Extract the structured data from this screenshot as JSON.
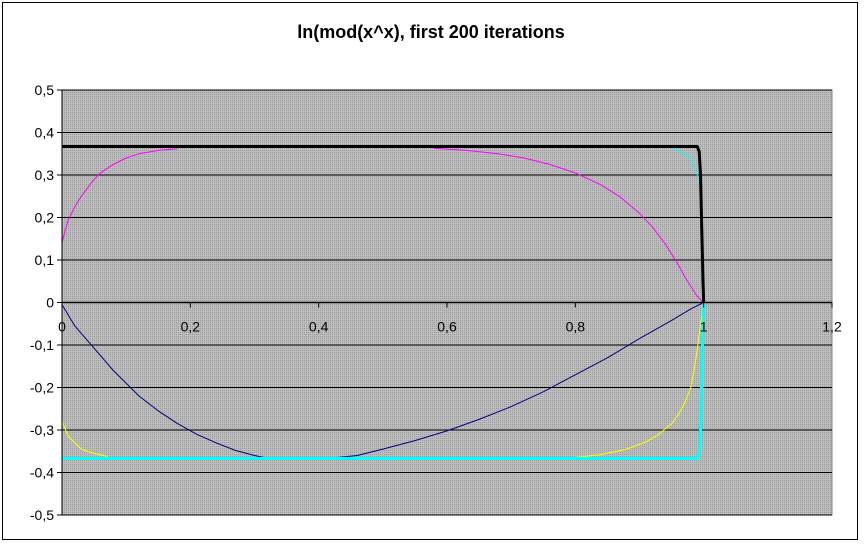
{
  "chart_data": {
    "type": "scatter",
    "title": "ln(mod(x^x), first 200 iterations",
    "xlabel": "",
    "ylabel": "",
    "xlim": [
      0,
      1.2
    ],
    "ylim": [
      -0.5,
      0.5
    ],
    "x_ticks": [
      "0",
      "0,2",
      "0,4",
      "0,6",
      "0,8",
      "1",
      "1,2"
    ],
    "y_ticks": [
      "0,5",
      "0,4",
      "0,3",
      "0,2",
      "0,1",
      "0",
      "-0,1",
      "-0,2",
      "-0,3",
      "-0,4",
      "-0,5"
    ],
    "grid": "horizontal",
    "plot_background": "#c0c0c0",
    "series": [
      {
        "color": "#ff00ff",
        "points": [
          [
            0.0,
            0.14
          ],
          [
            0.005,
            0.17
          ],
          [
            0.01,
            0.195
          ],
          [
            0.02,
            0.225
          ],
          [
            0.03,
            0.25
          ],
          [
            0.04,
            0.27
          ],
          [
            0.05,
            0.29
          ],
          [
            0.06,
            0.305
          ],
          [
            0.08,
            0.325
          ],
          [
            0.1,
            0.34
          ],
          [
            0.12,
            0.35
          ],
          [
            0.15,
            0.358
          ],
          [
            0.18,
            0.362
          ]
        ]
      },
      {
        "color": "#ff00ff",
        "points": [
          [
            0.58,
            0.3625
          ],
          [
            0.63,
            0.358
          ],
          [
            0.68,
            0.35
          ],
          [
            0.72,
            0.34
          ],
          [
            0.76,
            0.325
          ],
          [
            0.8,
            0.305
          ],
          [
            0.84,
            0.277
          ],
          [
            0.87,
            0.248
          ],
          [
            0.9,
            0.21
          ],
          [
            0.92,
            0.178
          ],
          [
            0.94,
            0.138
          ],
          [
            0.96,
            0.09
          ],
          [
            0.97,
            0.062
          ],
          [
            0.98,
            0.038
          ],
          [
            0.99,
            0.014
          ],
          [
            1.0,
            0.0
          ]
        ]
      },
      {
        "color": "#00ffff",
        "points": [
          [
            0.95,
            0.362
          ],
          [
            0.96,
            0.358
          ],
          [
            0.97,
            0.35
          ],
          [
            0.98,
            0.338
          ],
          [
            0.99,
            0.3
          ],
          [
            0.995,
            0.27
          ]
        ]
      },
      {
        "color": "#000080",
        "points": [
          [
            0.0,
            -0.005
          ],
          [
            0.01,
            -0.03
          ],
          [
            0.02,
            -0.055
          ],
          [
            0.04,
            -0.09
          ],
          [
            0.06,
            -0.125
          ],
          [
            0.08,
            -0.16
          ],
          [
            0.1,
            -0.19
          ],
          [
            0.12,
            -0.22
          ],
          [
            0.15,
            -0.255
          ],
          [
            0.18,
            -0.285
          ],
          [
            0.21,
            -0.31
          ],
          [
            0.24,
            -0.33
          ],
          [
            0.27,
            -0.348
          ],
          [
            0.3,
            -0.36
          ],
          [
            0.32,
            -0.366
          ]
        ]
      },
      {
        "color": "#000080",
        "points": [
          [
            0.42,
            -0.366
          ],
          [
            0.46,
            -0.36
          ],
          [
            0.5,
            -0.345
          ],
          [
            0.55,
            -0.325
          ],
          [
            0.6,
            -0.302
          ],
          [
            0.65,
            -0.275
          ],
          [
            0.7,
            -0.245
          ],
          [
            0.75,
            -0.21
          ],
          [
            0.8,
            -0.17
          ],
          [
            0.85,
            -0.13
          ],
          [
            0.9,
            -0.085
          ],
          [
            0.95,
            -0.042
          ],
          [
            0.98,
            -0.015
          ],
          [
            1.0,
            0.0
          ]
        ]
      },
      {
        "color": "#ffff00",
        "points": [
          [
            0.0,
            -0.28
          ],
          [
            0.01,
            -0.315
          ],
          [
            0.02,
            -0.33
          ],
          [
            0.03,
            -0.345
          ],
          [
            0.05,
            -0.355
          ],
          [
            0.07,
            -0.362
          ]
        ]
      },
      {
        "color": "#ffff00",
        "points": [
          [
            0.79,
            -0.366
          ],
          [
            0.84,
            -0.358
          ],
          [
            0.88,
            -0.345
          ],
          [
            0.91,
            -0.328
          ],
          [
            0.93,
            -0.31
          ],
          [
            0.95,
            -0.285
          ],
          [
            0.96,
            -0.265
          ],
          [
            0.97,
            -0.238
          ],
          [
            0.98,
            -0.2
          ],
          [
            0.985,
            -0.16
          ],
          [
            0.99,
            -0.11
          ],
          [
            0.995,
            -0.05
          ],
          [
            1.0,
            0.0
          ]
        ]
      },
      {
        "color": "#000000",
        "points": [
          [
            0.0,
            0.367
          ],
          [
            0.99,
            0.367
          ],
          [
            0.993,
            0.355
          ],
          [
            0.995,
            0.3
          ],
          [
            0.997,
            0.18
          ],
          [
            0.999,
            0.05
          ],
          [
            1.0,
            0.0
          ]
        ]
      },
      {
        "color": "#00ffff",
        "points": [
          [
            0.0,
            -0.367
          ],
          [
            0.99,
            -0.367
          ],
          [
            0.993,
            -0.355
          ],
          [
            0.995,
            -0.3
          ],
          [
            0.997,
            -0.18
          ],
          [
            0.999,
            -0.05
          ],
          [
            1.0,
            0.0
          ]
        ]
      }
    ]
  }
}
